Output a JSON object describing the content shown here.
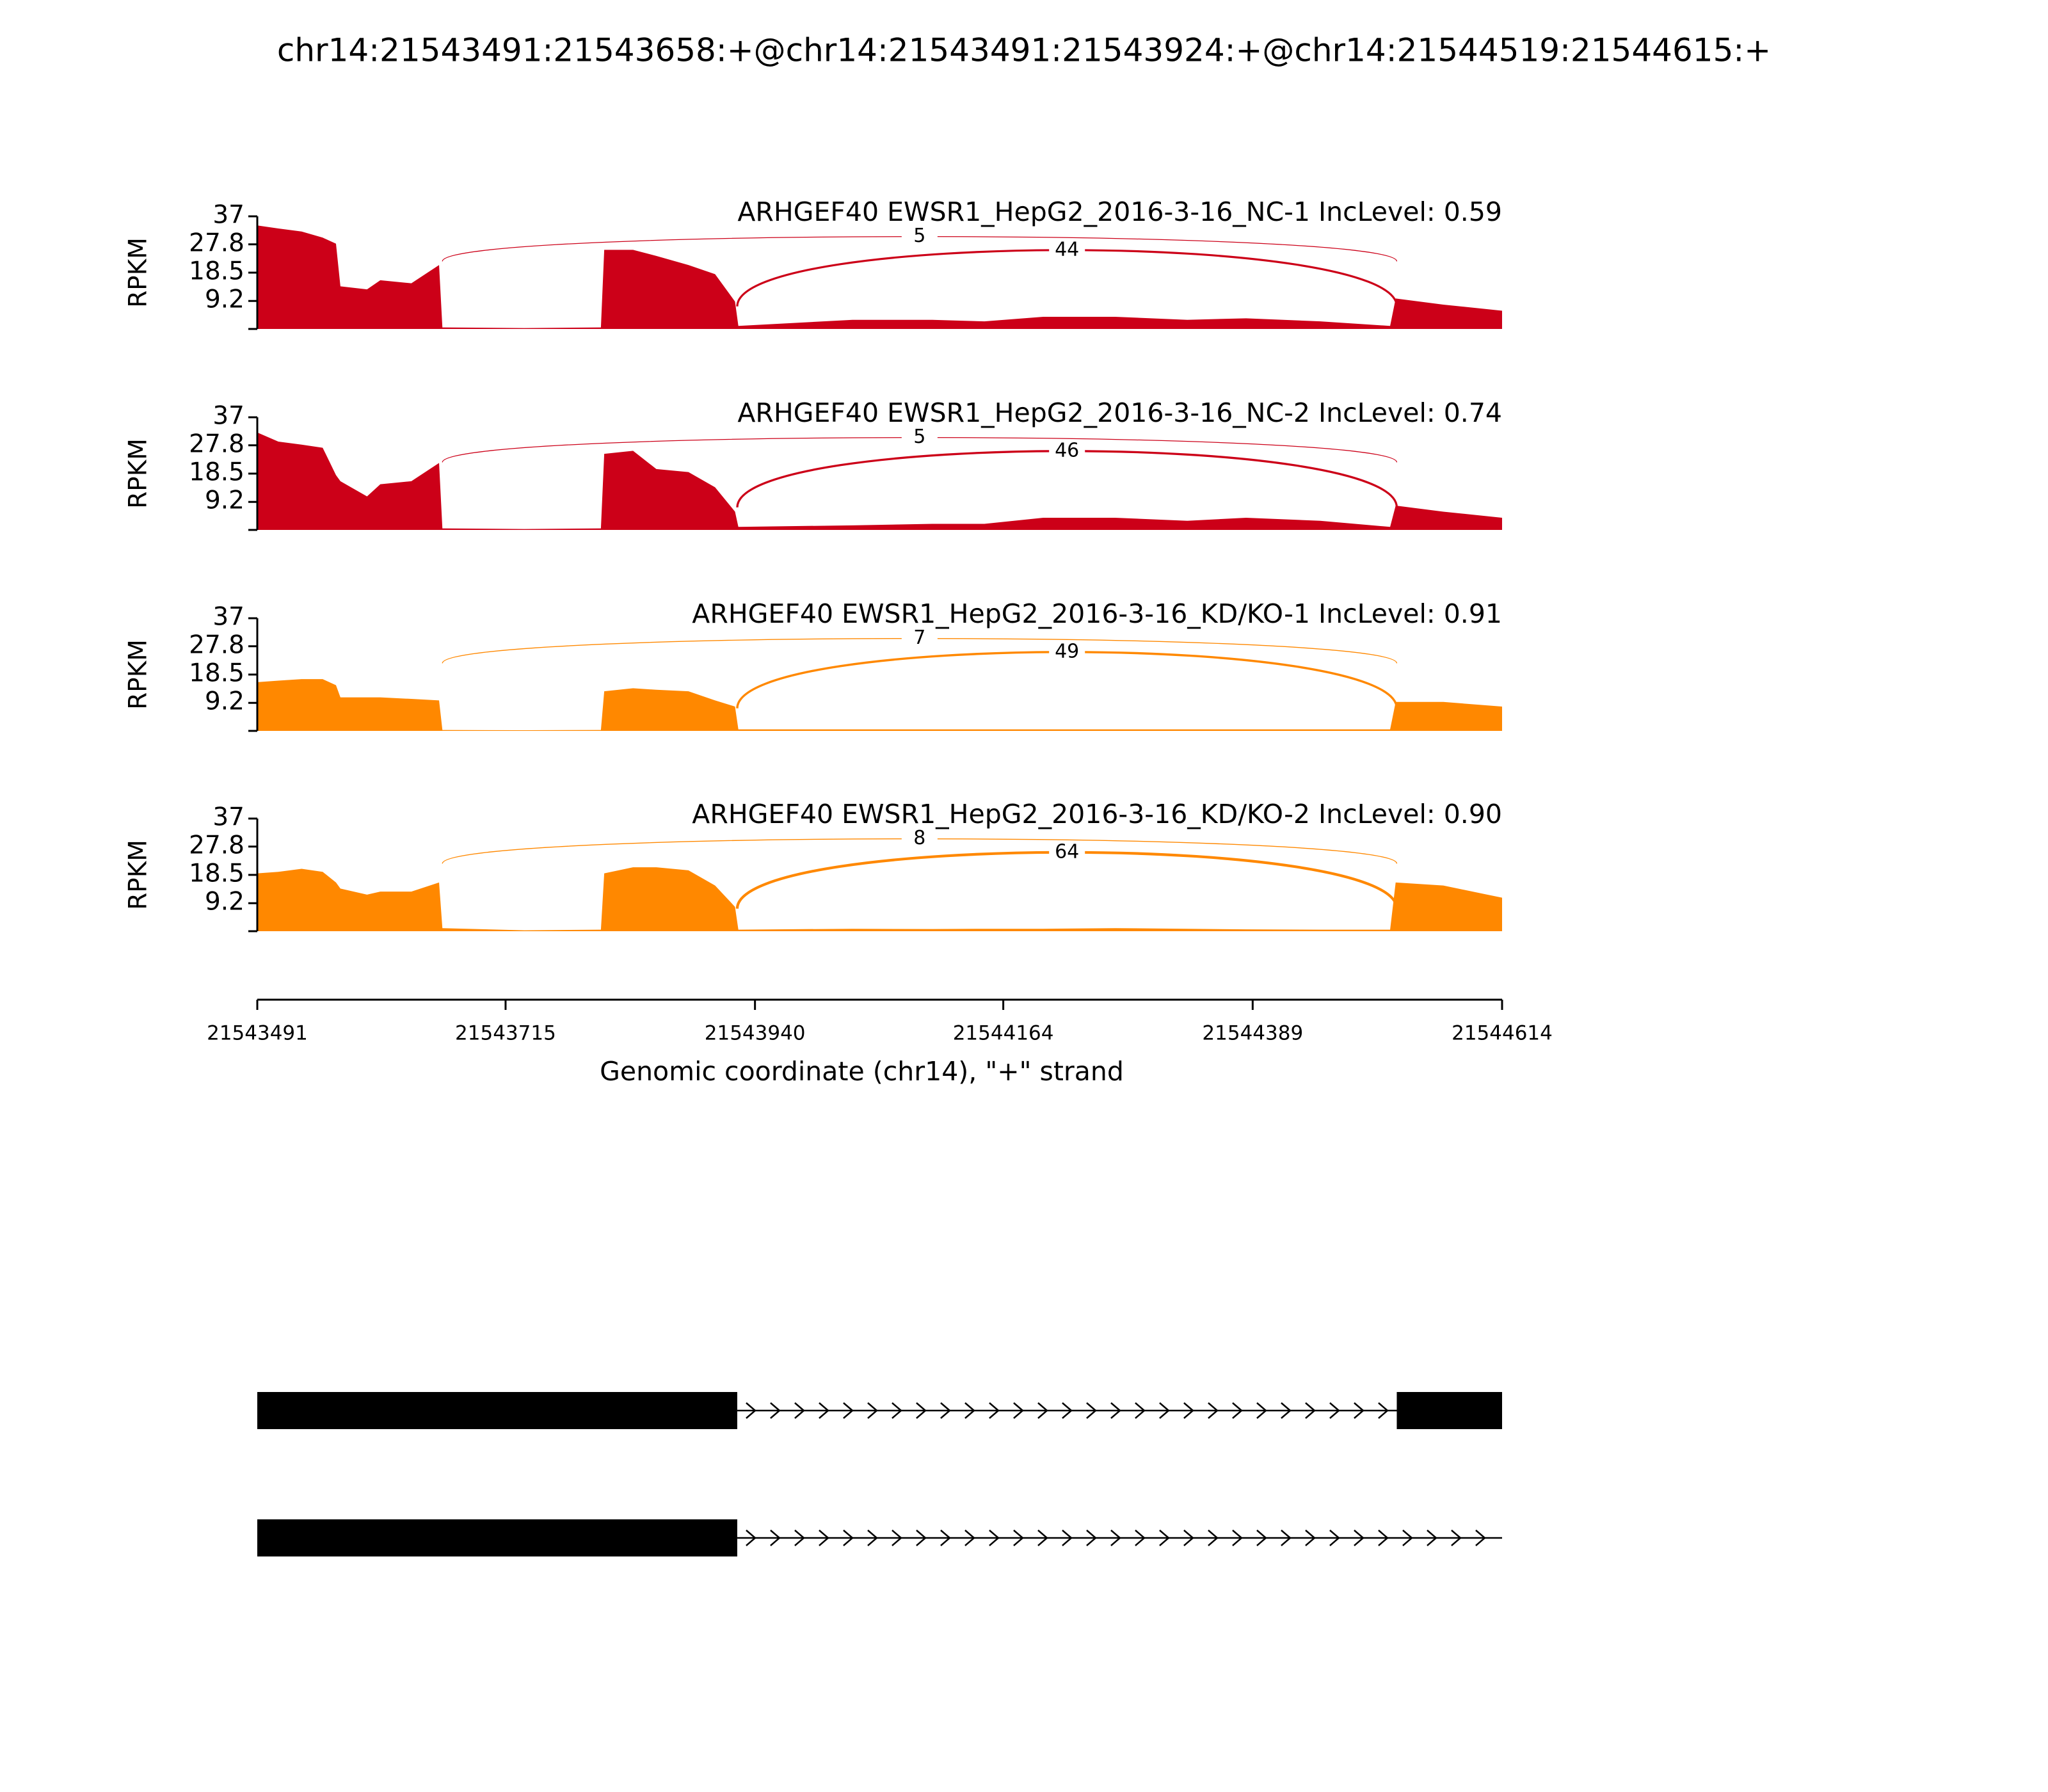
{
  "title": "chr14:21543491:21543658:+@chr14:21543491:21543924:+@chr14:21544519:21544615:+",
  "transcripts": [
    {
      "exons": [
        [
          21543491,
          21543924
        ],
        [
          21544519,
          21544614
        ]
      ]
    },
    {
      "exons": [
        [
          21543491,
          21543924
        ]
      ]
    }
  ],
  "chart_data": [
    {
      "type": "area",
      "title": "ARHGEF40 EWSR1_HepG2_2016-3-16_NC-1 IncLevel: 0.59",
      "ylabel": "RPKM",
      "color": "#cc0018",
      "xlim": [
        21543491,
        21544614
      ],
      "ylim": [
        0,
        37
      ],
      "yticks": [
        9.2,
        18.5,
        27.8,
        37
      ],
      "x": [
        21543491,
        21543510,
        21543531,
        21543550,
        21543562,
        21543566,
        21543590,
        21543602,
        21543630,
        21543655,
        21543658,
        21543732,
        21543801,
        21543804,
        21543830,
        21543851,
        21543880,
        21543904,
        21543922,
        21543925,
        21544028,
        21544100,
        21544147,
        21544200,
        21544265,
        21544330,
        21544383,
        21544450,
        21544513,
        21544518,
        21544561,
        21544614
      ],
      "values": [
        34,
        33,
        32,
        30,
        28,
        14,
        13,
        16,
        15,
        21,
        0.5,
        0.3,
        0.5,
        26,
        26,
        24,
        21,
        18,
        9,
        1,
        3,
        3,
        2.5,
        4,
        4,
        3,
        3.5,
        2.5,
        1,
        10,
        8,
        6
      ],
      "junctions": [
        {
          "start": 21543658,
          "end": 21544519,
          "count": 5
        },
        {
          "start": 21543924,
          "end": 21544519,
          "count": 44
        }
      ]
    },
    {
      "type": "area",
      "title": "ARHGEF40 EWSR1_HepG2_2016-3-16_NC-2 IncLevel: 0.74",
      "ylabel": "RPKM",
      "color": "#cc0018",
      "xlim": [
        21543491,
        21544614
      ],
      "ylim": [
        0,
        37
      ],
      "yticks": [
        9.2,
        18.5,
        27.8,
        37
      ],
      "x": [
        21543491,
        21543510,
        21543531,
        21543550,
        21543562,
        21543566,
        21543590,
        21543602,
        21543630,
        21543655,
        21543658,
        21543732,
        21543801,
        21543804,
        21543830,
        21543851,
        21543880,
        21543904,
        21543922,
        21543925,
        21544028,
        21544100,
        21544147,
        21544200,
        21544265,
        21544330,
        21544383,
        21544450,
        21544513,
        21544518,
        21544561,
        21544614
      ],
      "values": [
        32,
        29,
        28,
        27,
        18,
        16,
        11,
        15,
        16,
        22,
        0.5,
        0.3,
        0.5,
        25,
        26,
        20,
        19,
        14,
        6,
        1,
        1.5,
        2,
        2,
        4,
        4,
        3,
        4,
        3,
        1,
        8,
        6,
        4
      ],
      "junctions": [
        {
          "start": 21543658,
          "end": 21544519,
          "count": 5
        },
        {
          "start": 21543924,
          "end": 21544519,
          "count": 46
        }
      ]
    },
    {
      "type": "area",
      "title": "ARHGEF40 EWSR1_HepG2_2016-3-16_KD/KO-1 IncLevel: 0.91",
      "ylabel": "RPKM",
      "color": "#ff8800",
      "xlim": [
        21543491,
        21544614
      ],
      "ylim": [
        0,
        37
      ],
      "yticks": [
        9.2,
        18.5,
        27.8,
        37
      ],
      "x": [
        21543491,
        21543510,
        21543531,
        21543550,
        21543562,
        21543566,
        21543590,
        21543602,
        21543630,
        21543655,
        21543658,
        21543732,
        21543801,
        21543804,
        21543830,
        21543851,
        21543880,
        21543904,
        21543922,
        21543925,
        21544028,
        21544100,
        21544147,
        21544200,
        21544265,
        21544330,
        21544383,
        21544450,
        21544513,
        21544518,
        21544561,
        21544614
      ],
      "values": [
        16,
        16.5,
        17,
        17,
        15,
        11,
        11,
        11,
        10.5,
        10,
        0.3,
        0.2,
        0.3,
        13,
        14,
        13.5,
        13,
        10,
        8,
        0.5,
        0.5,
        0.5,
        0.5,
        0.5,
        0.5,
        0.5,
        0.5,
        0.5,
        0.5,
        9.5,
        9.5,
        8
      ],
      "junctions": [
        {
          "start": 21543658,
          "end": 21544519,
          "count": 7
        },
        {
          "start": 21543924,
          "end": 21544519,
          "count": 49
        }
      ]
    },
    {
      "type": "area",
      "title": "ARHGEF40 EWSR1_HepG2_2016-3-16_KD/KO-2 IncLevel: 0.90",
      "ylabel": "RPKM",
      "color": "#ff8800",
      "xlim": [
        21543491,
        21544614
      ],
      "ylim": [
        0,
        37
      ],
      "yticks": [
        9.2,
        18.5,
        27.8,
        37
      ],
      "xlabel": "Genomic coordinate (chr14), \"+\" strand",
      "xticks": [
        21543491,
        21543715,
        21543940,
        21544164,
        21544389,
        21544614
      ],
      "x": [
        21543491,
        21543510,
        21543531,
        21543550,
        21543562,
        21543566,
        21543590,
        21543602,
        21543630,
        21543655,
        21543658,
        21543732,
        21543801,
        21543804,
        21543830,
        21543851,
        21543880,
        21543904,
        21543922,
        21543925,
        21544028,
        21544100,
        21544147,
        21544200,
        21544265,
        21544330,
        21544383,
        21544450,
        21544513,
        21544518,
        21544561,
        21544614
      ],
      "values": [
        19,
        19.5,
        20.5,
        19.5,
        16,
        14,
        12,
        13,
        13,
        16,
        1,
        0.3,
        0.5,
        19,
        21,
        21,
        20,
        15,
        8,
        0.5,
        0.8,
        0.7,
        0.8,
        0.8,
        1,
        0.8,
        0.6,
        0.5,
        0.5,
        16,
        15,
        11
      ],
      "junctions": [
        {
          "start": 21543658,
          "end": 21544519,
          "count": 8
        },
        {
          "start": 21543924,
          "end": 21544519,
          "count": 64
        }
      ]
    }
  ]
}
